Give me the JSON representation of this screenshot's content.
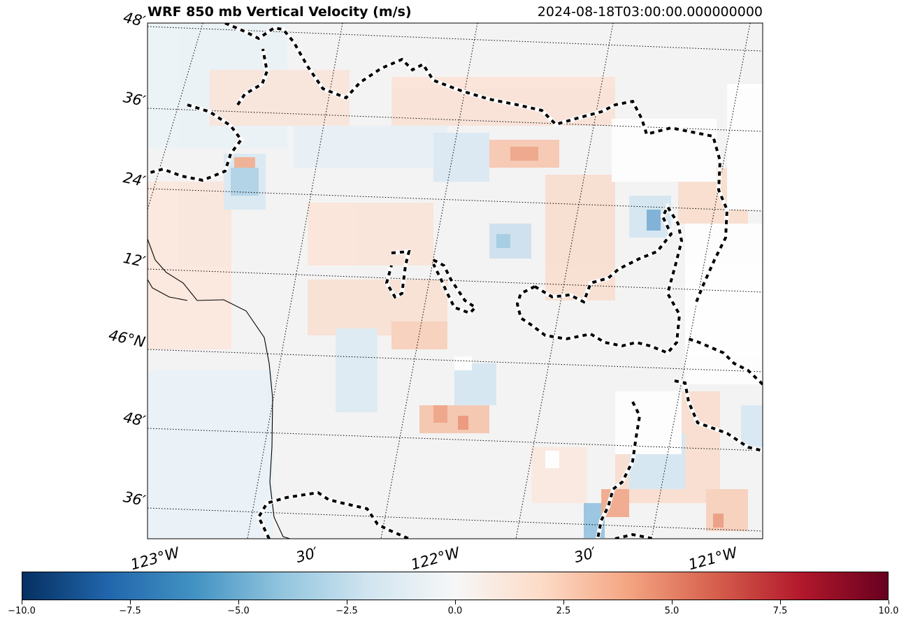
{
  "title": {
    "left": "WRF 850 mb Vertical Velocity (m/s)",
    "right": "2024-08-18T03:00:00.000000000"
  },
  "map": {
    "lat_labels": [
      "48′",
      "36′",
      "24′",
      "12′",
      "46°N",
      "48′",
      "36′"
    ],
    "lon_labels": [
      "123°W",
      "30′",
      "122°W",
      "30′",
      "121°W"
    ],
    "variable": "850 mb vertical velocity",
    "units": "m/s",
    "colormap": "RdBu_r",
    "gridlines": "dotted",
    "colors": {
      "strong_negative": "#053061",
      "negative": "#4393c3",
      "zero": "#f7f7f7",
      "positive": "#f4a582",
      "strong_positive": "#67001f",
      "coastline": "#000000",
      "boundary": "#000000"
    }
  },
  "colorbar": {
    "min": -10.0,
    "max": 10.0,
    "ticks": [
      "−10.0",
      "−7.5",
      "−5.0",
      "−2.5",
      "0.0",
      "2.5",
      "5.0",
      "7.5",
      "10.0"
    ],
    "stops": [
      "#053061",
      "#2166ac",
      "#4393c3",
      "#92c5de",
      "#d1e5f0",
      "#f7f7f7",
      "#fddbc7",
      "#f4a582",
      "#d6604d",
      "#b2182b",
      "#67001f"
    ]
  }
}
